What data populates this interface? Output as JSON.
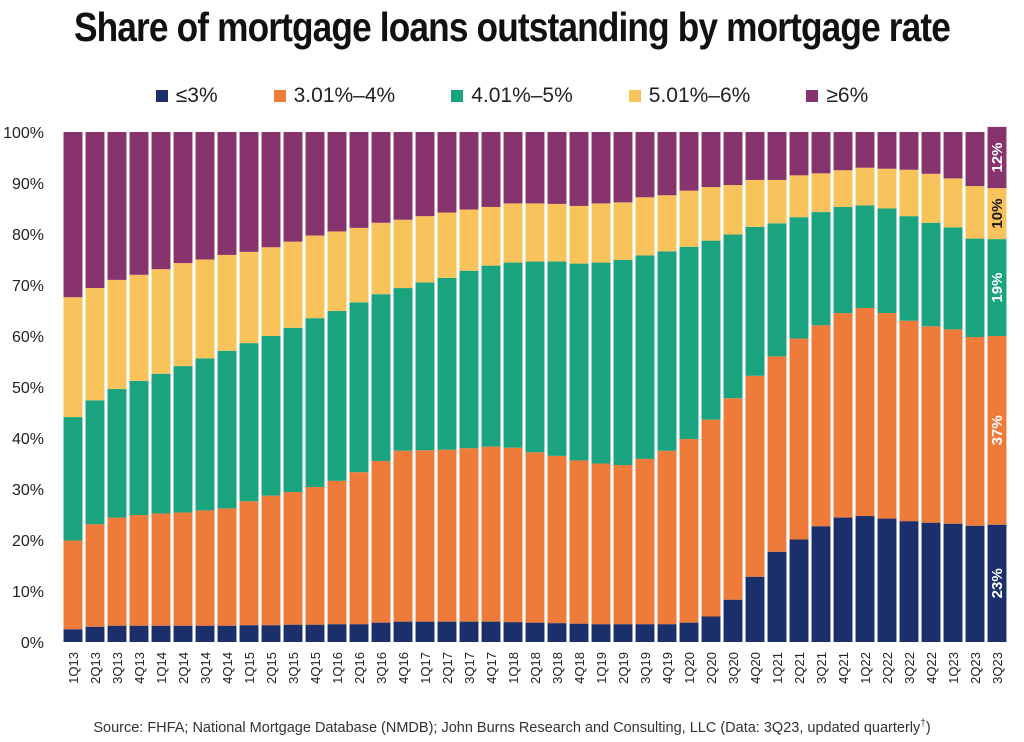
{
  "chart_data": {
    "type": "bar",
    "stacked": true,
    "title": "Share of mortgage loans outstanding by mortgage rate",
    "categories": [
      "1Q13",
      "2Q13",
      "3Q13",
      "4Q13",
      "1Q14",
      "2Q14",
      "3Q14",
      "4Q14",
      "1Q15",
      "2Q15",
      "3Q15",
      "4Q15",
      "1Q16",
      "2Q16",
      "3Q16",
      "4Q16",
      "1Q17",
      "2Q17",
      "3Q17",
      "4Q17",
      "1Q18",
      "2Q18",
      "3Q18",
      "4Q18",
      "1Q19",
      "2Q19",
      "3Q19",
      "4Q19",
      "1Q20",
      "2Q20",
      "3Q20",
      "4Q20",
      "1Q21",
      "2Q21",
      "3Q21",
      "4Q21",
      "1Q22",
      "2Q22",
      "3Q22",
      "4Q22",
      "1Q23",
      "2Q23",
      "3Q23"
    ],
    "series": [
      {
        "name": "≤3%",
        "color": "#1b2f6b",
        "values": [
          2.5,
          3,
          3.2,
          3.2,
          3.2,
          3.2,
          3.2,
          3.2,
          3.3,
          3.3,
          3.4,
          3.4,
          3.5,
          3.5,
          3.8,
          4.0,
          4.0,
          4.0,
          4.0,
          4.0,
          3.9,
          3.8,
          3.7,
          3.6,
          3.5,
          3.5,
          3.5,
          3.5,
          3.8,
          5,
          8.3,
          12.8,
          17.7,
          20.1,
          22.7,
          24.4,
          24.7,
          24.2,
          23.7,
          23.4,
          23.2,
          22.8,
          23
        ]
      },
      {
        "name": "3.01%–4%",
        "color": "#ee7b3a",
        "values": [
          17.4,
          20.1,
          21.2,
          21.7,
          22,
          22.2,
          22.6,
          23.0,
          24.3,
          25.4,
          26.0,
          27.0,
          28.1,
          29.8,
          31.7,
          33.5,
          33.6,
          33.7,
          34.0,
          34.3,
          34.2,
          33.4,
          32.8,
          32.0,
          31.5,
          31.2,
          32.4,
          34.0,
          36.0,
          38.6,
          39.5,
          39.4,
          38.3,
          39.4,
          39.4,
          40.1,
          40.8,
          40.3,
          39.3,
          38.5,
          38.1,
          37.0,
          37
        ]
      },
      {
        "name": "4.01%–5%",
        "color": "#1aa37f",
        "values": [
          24.2,
          24.3,
          25.2,
          26.3,
          27.4,
          28.7,
          29.8,
          30.9,
          31.0,
          31.3,
          32.2,
          33.1,
          33.3,
          33.3,
          32.7,
          31.9,
          32.9,
          33.7,
          34.8,
          35.5,
          36.3,
          37.4,
          38.1,
          38.6,
          39.4,
          40.2,
          39.9,
          39.1,
          37.7,
          35.1,
          32.1,
          29.2,
          26.1,
          23.8,
          22.2,
          20.8,
          20.1,
          20.5,
          20.5,
          20.3,
          20.0,
          19.3,
          19
        ]
      },
      {
        "name": "5.01%–6%",
        "color": "#f8c35a",
        "values": [
          23.5,
          22.0,
          21.4,
          20.8,
          20.5,
          20.2,
          19.4,
          18.8,
          17.9,
          17.4,
          16.9,
          16.2,
          15.6,
          14.6,
          14.0,
          13.4,
          13.0,
          12.8,
          12.0,
          11.5,
          11.6,
          11.4,
          11.3,
          11.3,
          11.6,
          11.3,
          11.4,
          11.0,
          11.0,
          10.5,
          9.7,
          9.2,
          8.5,
          8.2,
          7.6,
          7.2,
          7.4,
          7.8,
          9.1,
          9.6,
          9.6,
          10.3,
          10
        ]
      },
      {
        "name": "≥6%",
        "color": "#86336e",
        "values": [
          32.4,
          30.6,
          29.0,
          28.0,
          26.9,
          25.7,
          25.0,
          24.1,
          23.5,
          22.6,
          21.5,
          20.3,
          19.5,
          18.8,
          17.8,
          17.2,
          16.5,
          15.8,
          15.2,
          14.7,
          14.0,
          14.0,
          14.1,
          14.5,
          14.0,
          13.8,
          12.8,
          12.4,
          11.5,
          10.8,
          10.4,
          9.4,
          9.4,
          8.5,
          8.1,
          7.5,
          7.0,
          7.2,
          7.4,
          8.2,
          9.1,
          10.6,
          12
        ]
      }
    ],
    "ylim": [
      0,
      100
    ],
    "yticks": [
      "0%",
      "10%",
      "20%",
      "30%",
      "40%",
      "50%",
      "60%",
      "70%",
      "80%",
      "90%",
      "100%"
    ],
    "data_labels_last_bar": [
      "23%",
      "37%",
      "19%",
      "10%",
      "12%"
    ],
    "legend": "top",
    "grid": false
  },
  "source": "Source: FHFA; National Mortgage Database (NMDB); John Burns Research and Consulting, LLC (Data: 3Q23, updated quarterly",
  "source_mark": "†",
  "source_close": ")"
}
